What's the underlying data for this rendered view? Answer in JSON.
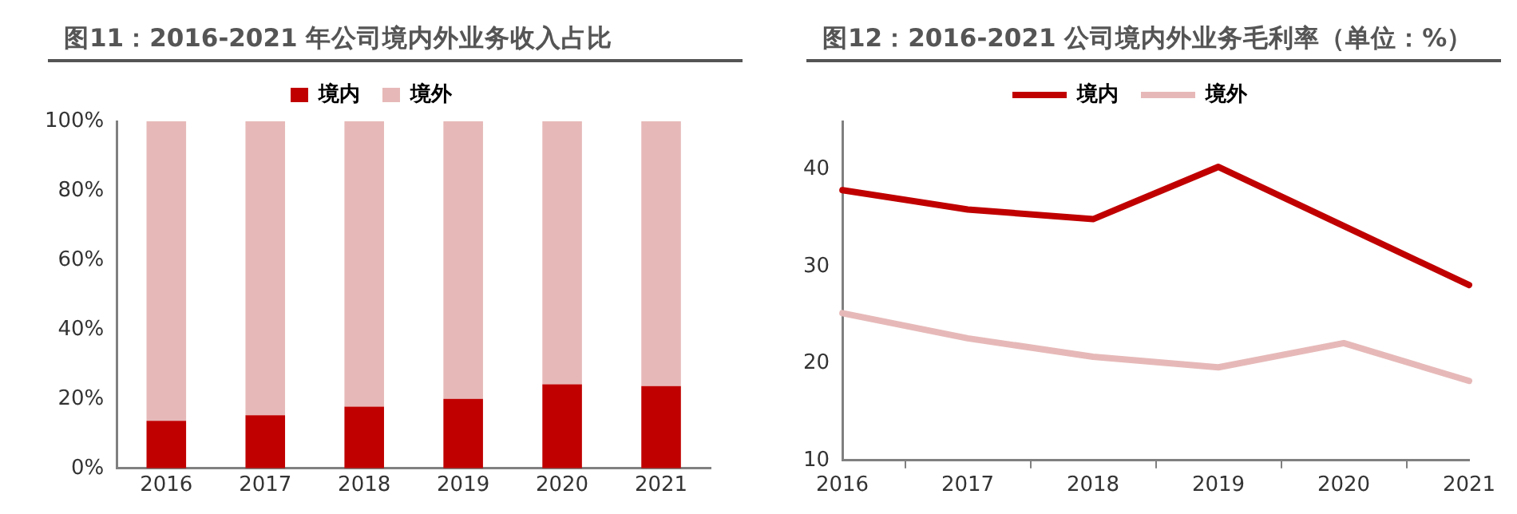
{
  "chart_data": [
    {
      "type": "bar",
      "title": "图11：2016-2021 年公司境内外业务收入占比",
      "categories": [
        "2016",
        "2017",
        "2018",
        "2019",
        "2020",
        "2021"
      ],
      "stacked": true,
      "series": [
        {
          "name": "境内",
          "color": "#c00000",
          "values": [
            13.7,
            15.3,
            17.8,
            20,
            24.2,
            23.7
          ]
        },
        {
          "name": "境外",
          "color": "#e6b9b8",
          "values": [
            86.3,
            84.7,
            82.2,
            80,
            75.8,
            76.3
          ]
        }
      ],
      "ylim": [
        0,
        100
      ],
      "yticks": [
        {
          "value": 0,
          "label": "0%"
        },
        {
          "value": 20,
          "label": "20%"
        },
        {
          "value": 40,
          "label": "40%"
        },
        {
          "value": 60,
          "label": "60%"
        },
        {
          "value": 80,
          "label": "80%"
        },
        {
          "value": 100,
          "label": "100%"
        }
      ],
      "grid": false,
      "legend": "top"
    },
    {
      "type": "line",
      "title": "图12：2016-2021 公司境内外业务毛利率（单位：%）",
      "categories": [
        "2016",
        "2017",
        "2018",
        "2019",
        "2020",
        "2021"
      ],
      "series": [
        {
          "name": "境内",
          "color": "#c00000",
          "values": [
            37.9,
            35.9,
            34.9,
            40.3,
            34.2,
            28.1
          ]
        },
        {
          "name": "境外",
          "color": "#e6b9b8",
          "values": [
            25.2,
            22.6,
            20.7,
            19.6,
            22.1,
            18.2
          ]
        }
      ],
      "ylim": [
        10,
        45
      ],
      "yticks": [
        10,
        20,
        30,
        40
      ],
      "grid": false,
      "legend": "top",
      "marker": "none"
    }
  ]
}
